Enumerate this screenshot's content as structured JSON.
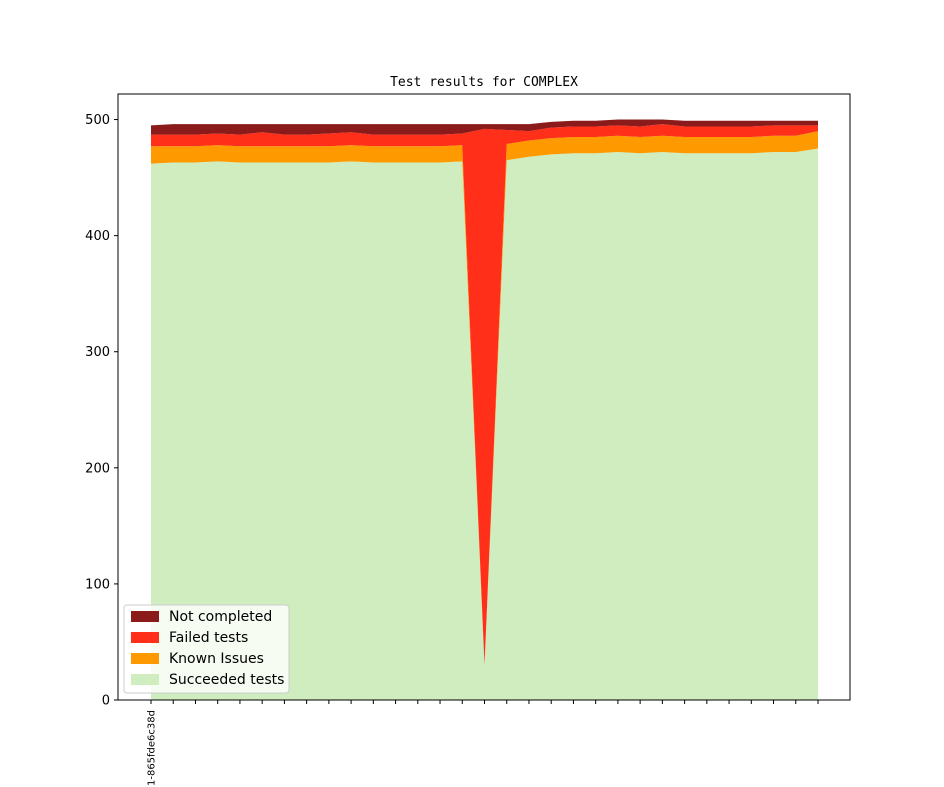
{
  "chart_data": {
    "type": "area",
    "title": "Test results for COMPLEX",
    "xlabel": "",
    "ylabel": "",
    "ylim": [
      0,
      522
    ],
    "grid": false,
    "legend_placement": "lower-left",
    "y_ticks": [
      0,
      100,
      200,
      300,
      400,
      500
    ],
    "x_tick_labels": [
      "1-865fde6c38d"
    ],
    "point_count": 31,
    "series": [
      {
        "name": "Succeeded tests",
        "color": "#cfedbe",
        "values": [
          462,
          463,
          463,
          464,
          463,
          463,
          463,
          463,
          463,
          464,
          463,
          463,
          463,
          463,
          464,
          30,
          465,
          468,
          470,
          471,
          471,
          472,
          471,
          472,
          471,
          471,
          471,
          471,
          472,
          472,
          475
        ]
      },
      {
        "name": "Known Issues",
        "color": "#ff9900",
        "values": [
          15,
          14,
          14,
          14,
          14,
          14,
          14,
          14,
          14,
          14,
          14,
          14,
          14,
          14,
          14,
          0,
          14,
          14,
          14,
          14,
          14,
          14,
          14,
          14,
          14,
          14,
          14,
          14,
          14,
          14,
          15
        ]
      },
      {
        "name": "Failed tests",
        "color": "#ff2f1a",
        "values": [
          10,
          10,
          10,
          10,
          10,
          12,
          10,
          10,
          11,
          11,
          10,
          10,
          10,
          10,
          10,
          462,
          12,
          8,
          9,
          9,
          9,
          9,
          9,
          10,
          9,
          9,
          9,
          9,
          9,
          9,
          5
        ]
      },
      {
        "name": "Not completed",
        "color": "#8b1a1a",
        "values": [
          8,
          9,
          9,
          8,
          9,
          7,
          9,
          9,
          8,
          7,
          9,
          9,
          9,
          9,
          8,
          4,
          5,
          6,
          5,
          5,
          5,
          5,
          6,
          4,
          5,
          5,
          5,
          5,
          4,
          4,
          4
        ]
      }
    ],
    "legend_order": [
      "Not completed",
      "Failed tests",
      "Known Issues",
      "Succeeded tests"
    ]
  }
}
